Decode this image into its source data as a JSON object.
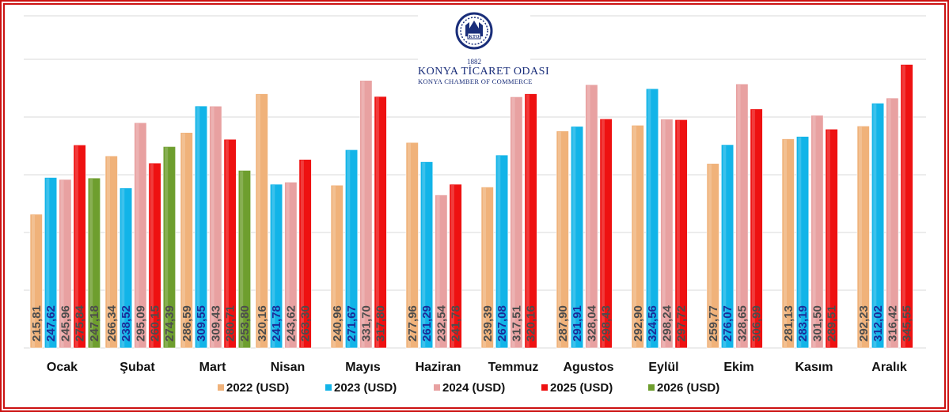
{
  "logo": {
    "year": "1882",
    "title": "KONYA TİCARET ODASI",
    "subtitle": "KONYA CHAMBER OF COMMERCE",
    "emblem_text": "KTO"
  },
  "colors": {
    "2022 (USD)": "#f0b27a",
    "2023 (USD)": "#12b4e8",
    "2024 (USD)": "#e8a1a1",
    "2025 (USD)": "#ee1111",
    "2026 (USD)": "#6e9e2e",
    "frame": "#cc1111",
    "grid": "#d9d9d9"
  },
  "chart_data": {
    "type": "bar",
    "categories": [
      "Ocak",
      "Şubat",
      "Mart",
      "Nisan",
      "Mayıs",
      "Haziran",
      "Temmuz",
      "Agustos",
      "Eylül",
      "Ekim",
      "Kasım",
      "Aralık"
    ],
    "series": [
      {
        "name": "2022 (USD)",
        "values": [
          215.81,
          266.34,
          286.59,
          320.16,
          240.96,
          277.96,
          239.39,
          287.9,
          292.9,
          259.77,
          281.13,
          292.23
        ],
        "labels": [
          "215,81",
          "266,34",
          "286,59",
          "320,16",
          "240,96",
          "277,96",
          "239,39",
          "287,90",
          "292,90",
          "259,77",
          "281,13",
          "292,23"
        ]
      },
      {
        "name": "2023 (USD)",
        "values": [
          247.62,
          238.52,
          309.55,
          241.78,
          271.67,
          261.29,
          267.08,
          291.91,
          324.56,
          276.07,
          283.19,
          312.02
        ],
        "labels": [
          "247,62",
          "238,52",
          "309,55",
          "241,78",
          "271,67",
          "261,29",
          "267,08",
          "291,91",
          "324,56",
          "276,07",
          "283,19",
          "312,02"
        ]
      },
      {
        "name": "2024 (USD)",
        "values": [
          245.96,
          295.09,
          309.43,
          243.62,
          331.7,
          232.54,
          317.51,
          328.04,
          298.24,
          328.65,
          301.5,
          316.42
        ],
        "labels": [
          "245,96",
          "295,09",
          "309,43",
          "243,62",
          "331,70",
          "232,54",
          "317,51",
          "328,04",
          "298,24",
          "328,65",
          "301,50",
          "316,42"
        ]
      },
      {
        "name": "2025 (USD)",
        "values": [
          275.84,
          260.15,
          280.71,
          263.3,
          317.8,
          241.78,
          320.16,
          298.43,
          297.72,
          306.99,
          289.51,
          345.55
        ],
        "labels": [
          "275,84",
          "260,15",
          "280,71",
          "263,30",
          "317,80",
          "241,78",
          "320,16",
          "298,43",
          "297,72",
          "306,99",
          "289,51",
          "345,55"
        ]
      },
      {
        "name": "2026 (USD)",
        "values": [
          247.18,
          274.39,
          253.8,
          null,
          null,
          null,
          null,
          null,
          null,
          null,
          null,
          null
        ],
        "labels": [
          "247,18",
          "274,39",
          "253,80",
          null,
          null,
          null,
          null,
          null,
          null,
          null,
          null,
          null
        ]
      }
    ],
    "ylim": [
      100,
      350
    ],
    "grid": true,
    "legend_position": "bottom",
    "data_labels": "inside-vertical"
  }
}
